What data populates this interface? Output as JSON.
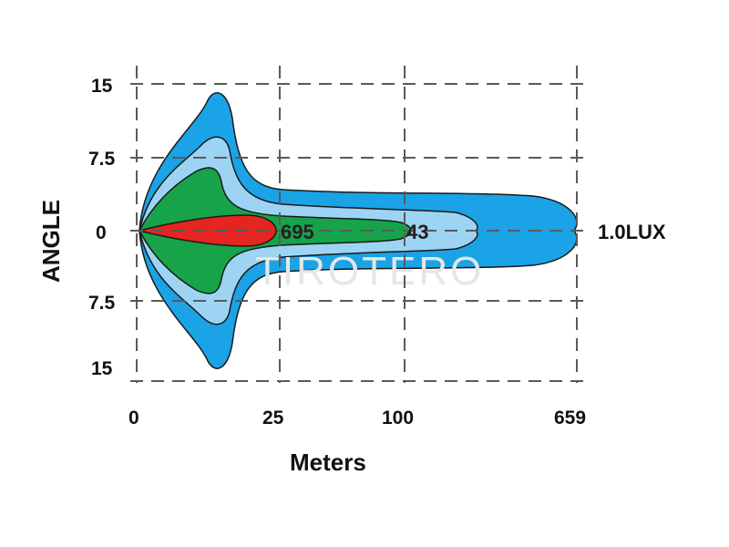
{
  "chart_data": {
    "type": "beam-pattern",
    "xlabel": "Meters",
    "ylabel": "ANGLE",
    "x_ticks": [
      "0",
      "25",
      "100",
      "659"
    ],
    "y_ticks": [
      "15",
      "7.5",
      "0",
      "7.5",
      "15"
    ],
    "grid": true,
    "contours": [
      {
        "color": "#1aa3e6",
        "reach_label": "659",
        "reach_label_shown": false,
        "end_label": "1.0LUX"
      },
      {
        "color": "#9dd4f4"
      },
      {
        "color": "#16a34a",
        "reach_label": "43"
      },
      {
        "color": "#e52520",
        "reach_label": "695"
      }
    ],
    "watermark": "TIROTERO"
  }
}
